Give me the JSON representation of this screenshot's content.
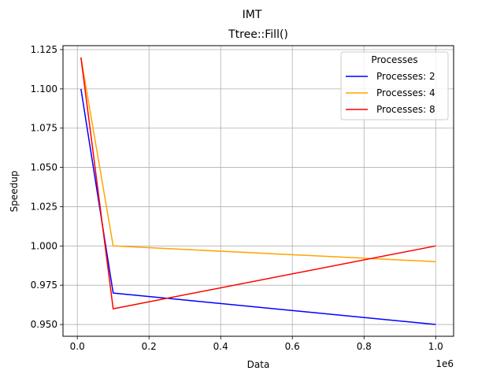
{
  "chart_data": {
    "type": "line",
    "suptitle": "IMT",
    "title": "Ttree::Fill()",
    "xlabel": "Data",
    "ylabel": "Speedup",
    "x_offset_label": "1e6",
    "xlim": [
      -40000,
      1050000
    ],
    "ylim": [
      0.9425,
      1.1275
    ],
    "x_ticks": [
      0,
      200000,
      400000,
      600000,
      800000,
      1000000
    ],
    "x_tick_labels": [
      "0.0",
      "0.2",
      "0.4",
      "0.6",
      "0.8",
      "1.0"
    ],
    "y_ticks": [
      0.95,
      0.975,
      1.0,
      1.025,
      1.05,
      1.075,
      1.1,
      1.125
    ],
    "y_tick_labels": [
      "0.950",
      "0.975",
      "1.000",
      "1.025",
      "1.050",
      "1.075",
      "1.100",
      "1.125"
    ],
    "grid": true,
    "legend": {
      "title": "Processes",
      "placement": "top-right"
    },
    "x": [
      10000,
      100000,
      1000000
    ],
    "series": [
      {
        "name": "Processes: 2",
        "color": "#0000ff",
        "values": [
          1.1,
          0.97,
          0.95
        ]
      },
      {
        "name": "Processes: 4",
        "color": "#ffa500",
        "values": [
          1.12,
          1.0,
          0.99
        ]
      },
      {
        "name": "Processes: 8",
        "color": "#ff0000",
        "values": [
          1.12,
          0.96,
          1.0
        ]
      }
    ]
  }
}
